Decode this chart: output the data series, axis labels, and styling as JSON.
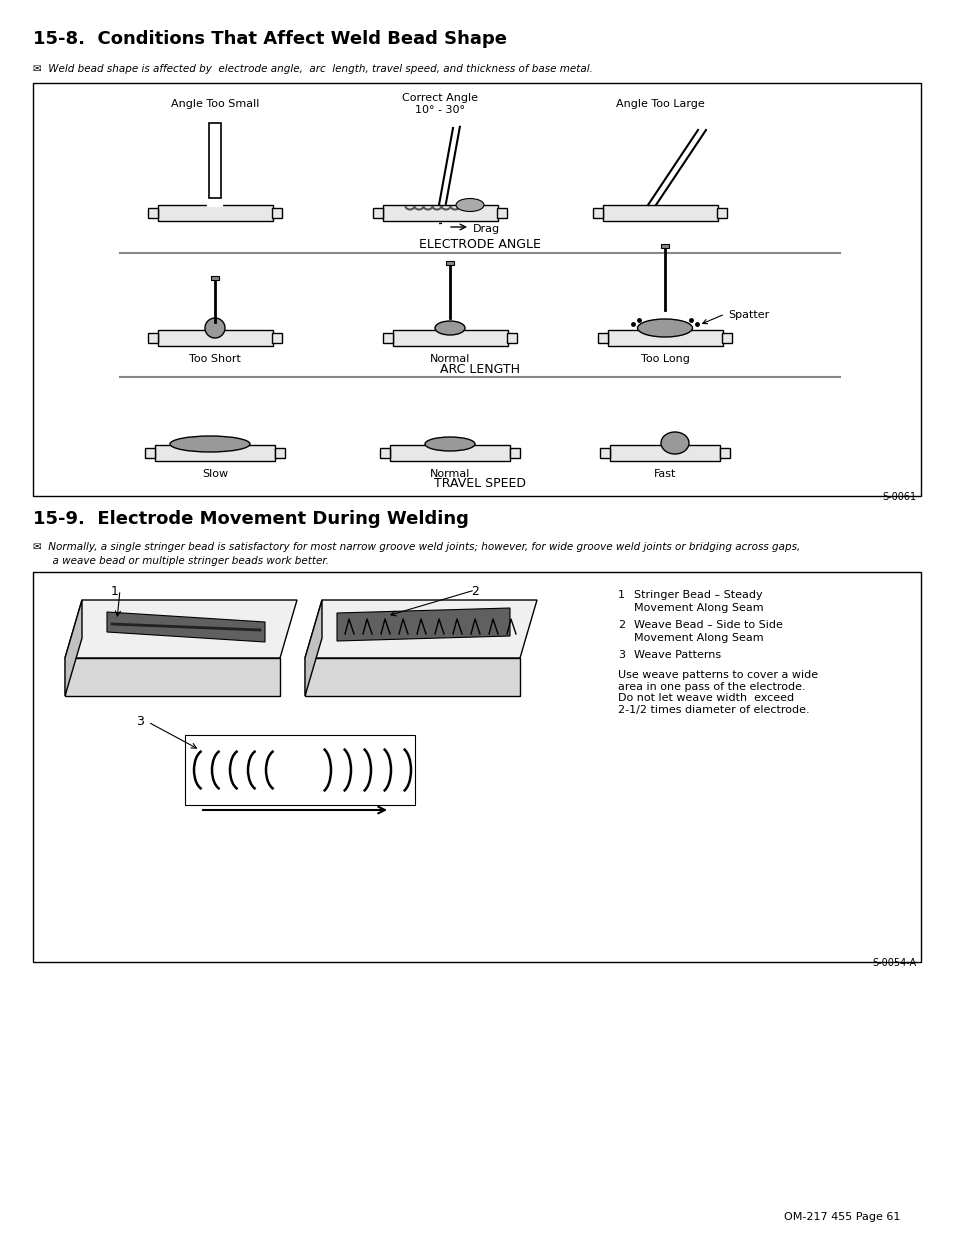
{
  "page_title_1": "15-8.  Conditions That Affect Weld Bead Shape",
  "page_title_2": "15-9.  Electrode Movement During Welding",
  "subtitle_1": "✉  Weld bead shape is affected by  electrode angle,  arc  length, travel speed, and thickness of base metal.",
  "subtitle_2_line1": "✉  Normally, a single stringer bead is satisfactory for most narrow groove weld joints; however, for wide groove weld joints or bridging across gaps,",
  "subtitle_2_line2": "      a weave bead or multiple stringer beads work better.",
  "section1_label": "ELECTRODE ANGLE",
  "section2_label": "ARC LENGTH",
  "section3_label": "TRAVEL SPEED",
  "code1": "S-0061",
  "code2": "S-0054-A",
  "footer": "OM-217 455 Page 61",
  "drag_label": "Drag",
  "spatter_label": "Spatter",
  "weave_desc": "Use weave patterns to cover a wide\narea in one pass of the electrode.\nDo not let weave width  exceed\n2-1/2 times diameter of electrode.",
  "bg_color": "#ffffff"
}
